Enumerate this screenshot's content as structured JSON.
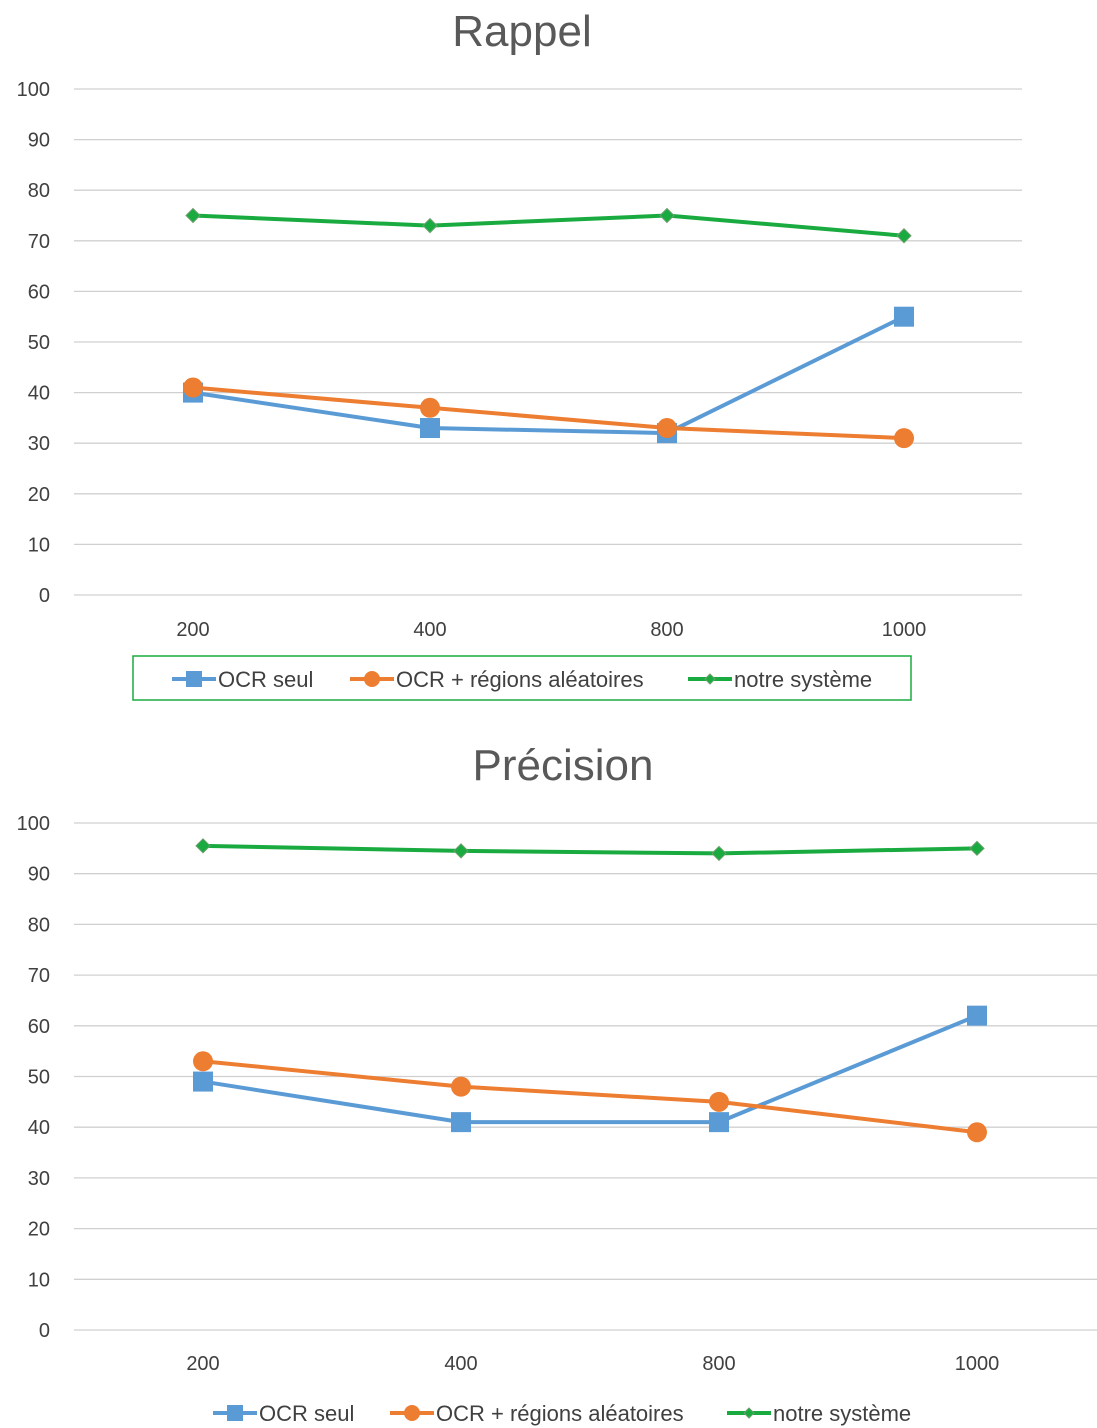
{
  "chart_data": [
    {
      "type": "line",
      "title": "Rappel",
      "categories": [
        "200",
        "400",
        "800",
        "1000"
      ],
      "ylim": [
        0,
        100
      ],
      "yticks": [
        0,
        10,
        20,
        30,
        40,
        50,
        60,
        70,
        80,
        90,
        100
      ],
      "grid": true,
      "legend": "bottom",
      "legend_border": true,
      "series": [
        {
          "name": "OCR seul",
          "values": [
            40,
            33,
            32,
            55
          ],
          "color": "#5b9bd5",
          "marker": "square"
        },
        {
          "name": "OCR + régions aléatoires",
          "values": [
            41,
            37,
            33,
            31
          ],
          "color": "#ed7d31",
          "marker": "circle"
        },
        {
          "name": "notre système",
          "values": [
            75,
            73,
            75,
            71
          ],
          "color": "#1aab40",
          "marker": "diamond"
        }
      ]
    },
    {
      "type": "line",
      "title": "Précision",
      "categories": [
        "200",
        "400",
        "800",
        "1000"
      ],
      "ylim": [
        0,
        100
      ],
      "yticks": [
        0,
        10,
        20,
        30,
        40,
        50,
        60,
        70,
        80,
        90,
        100
      ],
      "grid": true,
      "legend": "bottom",
      "legend_border": false,
      "series": [
        {
          "name": "OCR seul",
          "values": [
            49,
            41,
            41,
            62
          ],
          "color": "#5b9bd5",
          "marker": "square"
        },
        {
          "name": "OCR + régions aléatoires",
          "values": [
            53,
            48,
            45,
            39
          ],
          "color": "#ed7d31",
          "marker": "circle"
        },
        {
          "name": "notre système",
          "values": [
            95.5,
            94.5,
            94,
            95
          ],
          "color": "#1aab40",
          "marker": "diamond"
        }
      ]
    }
  ]
}
